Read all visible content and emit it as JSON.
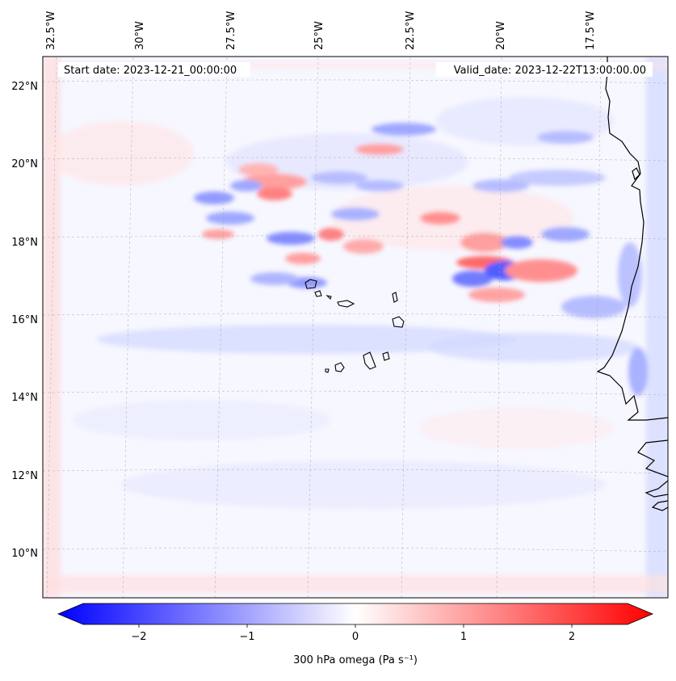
{
  "map": {
    "start_label": "Start date: 2023-12-21_00:00:00",
    "valid_label": "Valid_date: 2023-12-22T13:00:00.00",
    "longitude_labels": [
      "32.5°W",
      "30°W",
      "27.5°W",
      "25°W",
      "22.5°W",
      "20°W",
      "17.5°W"
    ],
    "latitude_labels": [
      "22°N",
      "20°N",
      "18°N",
      "16°N",
      "14°N",
      "12°N",
      "10°N"
    ],
    "colorbar": {
      "label": "300 hPa omega (Pa s⁻¹)",
      "ticks": [
        "−2",
        "−1",
        "0",
        "1",
        "2"
      ],
      "range": [
        -2.6,
        2.6
      ],
      "colormap": "bwr",
      "extend": "both"
    },
    "colors": {
      "negative": "#0000ff",
      "positive": "#ff0000",
      "neutral": "#ffffff",
      "coastline": "#000000"
    }
  }
}
